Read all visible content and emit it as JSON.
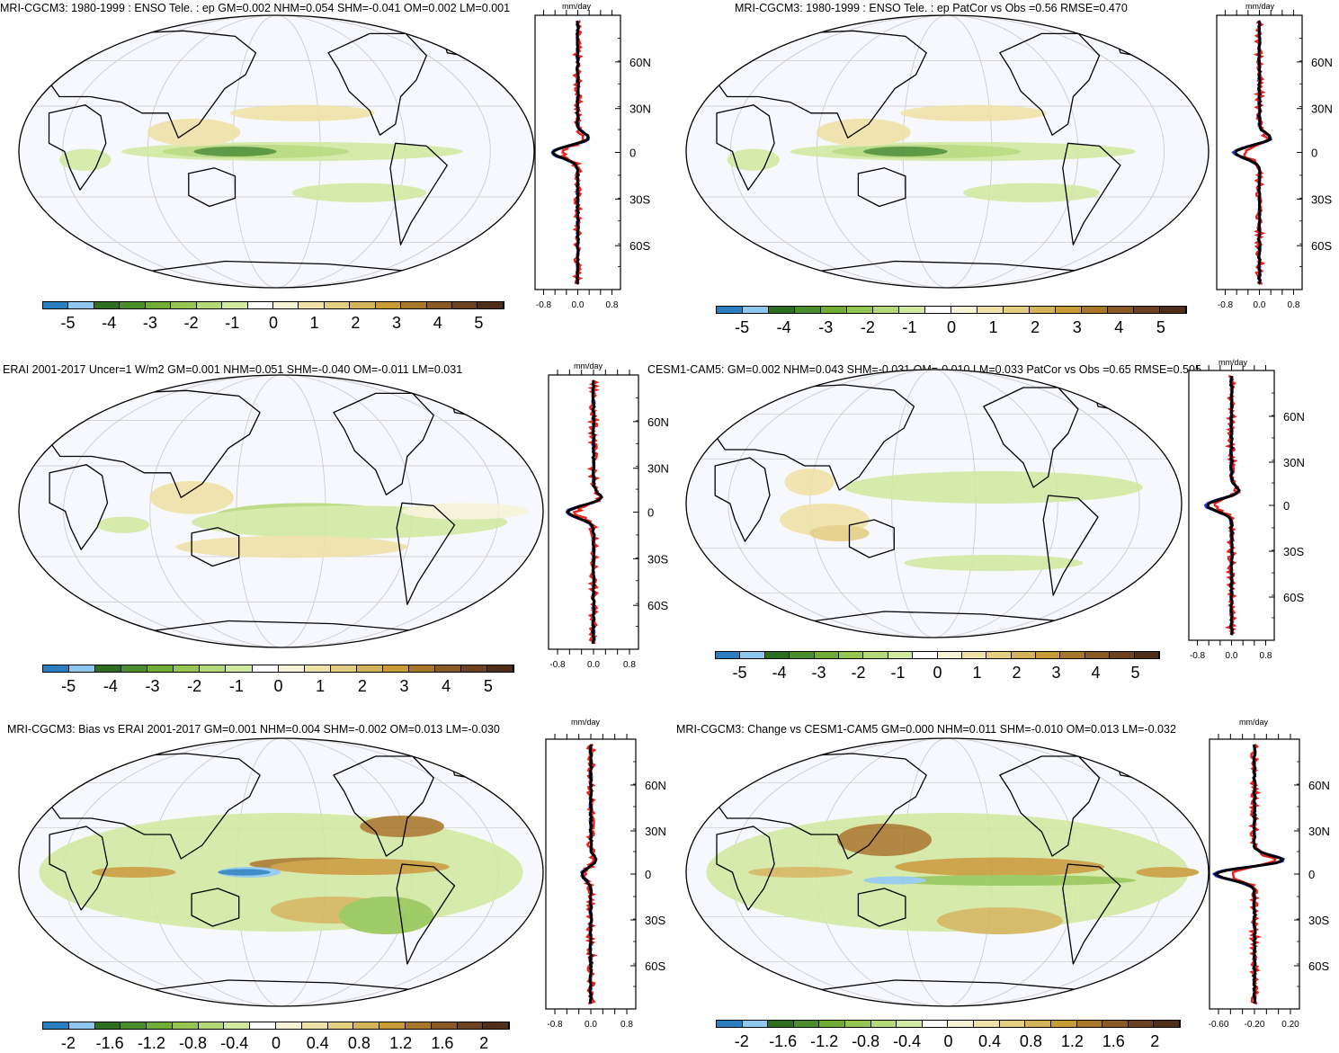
{
  "colorbar_colors": [
    "#2a7fc0",
    "#8ec8ee",
    "#2d6e21",
    "#4b8f2d",
    "#6fad37",
    "#95c653",
    "#b5d977",
    "#d2e9a0",
    "#ffffff",
    "#f6f3d7",
    "#efe2a6",
    "#e4cf80",
    "#d4b45b",
    "#c89a38",
    "#a9772a",
    "#8a5a24",
    "#6d4220",
    "#4f2f1a"
  ],
  "colorbar_labels_full": [
    "-5",
    "-4",
    "-3",
    "-2",
    "-1",
    "0",
    "1",
    "2",
    "3",
    "4",
    "5"
  ],
  "colorbar_labels_bias": [
    "-2",
    "-1.6",
    "-1.2",
    "-0.8",
    "-0.4",
    "0",
    "0.4",
    "0.8",
    "1.2",
    "1.6",
    "2"
  ],
  "lat_labels": [
    "60N",
    "30N",
    "0",
    "30S",
    "60S"
  ],
  "zonal_unit": "mm/day",
  "zonal_xticks_a": [
    "-0.8",
    "0.0",
    "0.8"
  ],
  "zonal_xticks_b": [
    "-0.60",
    "-0.20",
    "0.20"
  ],
  "line_colors": {
    "obs": "#2039d8",
    "model": "#e8221e",
    "mean": "#000000"
  },
  "panels": [
    {
      "title": "MRI-CGCM3: 1980-1999 : ENSO Tele. : ep GM=0.002 NHM=0.054 SHM=-0.041 OM=0.002 LM=0.001"
    },
    {
      "title": "MRI-CGCM3: 1980-1999 : ENSO Tele. : ep PatCor vs Obs =0.56 RMSE=0.470"
    },
    {
      "title": "ERAI 2001-2017 Uncer=1 W/m2 GM=0.001 NHM=0.051 SHM=-0.040 OM=-0.011 LM=0.031"
    },
    {
      "title": "CESM1-CAM5: GM=0.002 NHM=0.043 SHM=-0.031 OM=-0.010 LM=0.033 PatCor vs Obs =0.65 RMSE=0.505"
    },
    {
      "title": "MRI-CGCM3: Bias vs ERAI 2001-2017 GM=0.001 NHM=0.004 SHM=-0.002 OM=0.013 LM=-0.030"
    },
    {
      "title": "MRI-CGCM3: Change vs CESM1-CAM5 GM=0.000 NHM=0.011 SHM=-0.010 OM=0.013 LM=-0.032"
    }
  ]
}
